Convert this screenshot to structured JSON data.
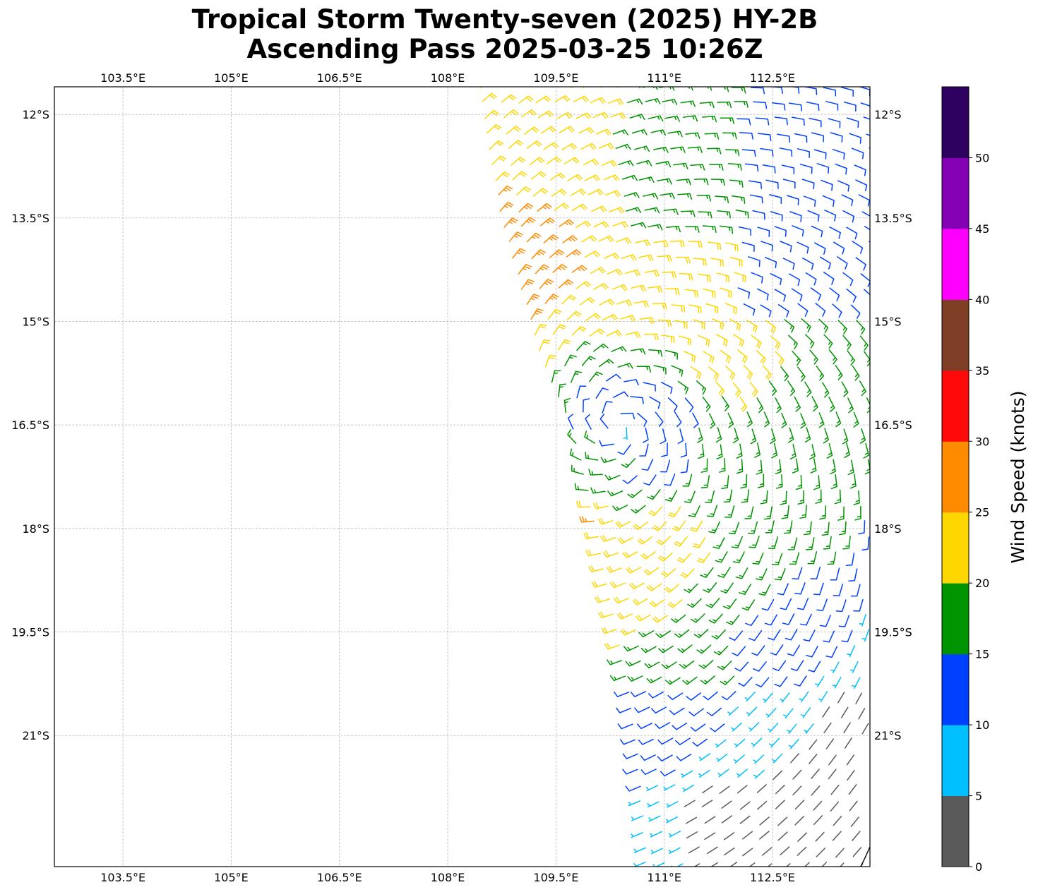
{
  "title": {
    "line1": "Tropical Storm Twenty-seven (2025) HY-2B",
    "line2": "Ascending Pass 2025-03-25 10:26Z"
  },
  "map": {
    "lon_range": [
      102.55,
      113.85
    ],
    "lat_range": [
      -22.9,
      -11.6
    ],
    "lon_ticks": [
      103.5,
      105,
      106.5,
      108,
      109.5,
      111,
      112.5
    ],
    "lon_tick_labels": [
      "103.5°E",
      "105°E",
      "106.5°E",
      "108°E",
      "109.5°E",
      "111°E",
      "112.5°E"
    ],
    "lat_ticks": [
      -12,
      -13.5,
      -15,
      -16.5,
      -18,
      -19.5,
      -21
    ],
    "lat_tick_labels": [
      "12°S",
      "13.5°S",
      "15°S",
      "16.5°S",
      "18°S",
      "19.5°S",
      "21°S"
    ],
    "gridlines": true,
    "grid_color": "#b0b0b0",
    "storm_center": {
      "lon": 110.35,
      "lat": -16.5
    },
    "swath_type": "scatterometer-wind-barbs"
  },
  "colorbar": {
    "label": "Wind Speed (knots)",
    "ticks": [
      "0",
      "5",
      "10",
      "15",
      "20",
      "25",
      "30",
      "35",
      "40",
      "45",
      "50"
    ],
    "bins": [
      {
        "min": 0,
        "max": 5,
        "color": "#5a5a5a"
      },
      {
        "min": 5,
        "max": 10,
        "color": "#00bfff"
      },
      {
        "min": 10,
        "max": 15,
        "color": "#0040ff"
      },
      {
        "min": 15,
        "max": 20,
        "color": "#009400"
      },
      {
        "min": 20,
        "max": 25,
        "color": "#ffd700"
      },
      {
        "min": 25,
        "max": 30,
        "color": "#ff8c00"
      },
      {
        "min": 30,
        "max": 35,
        "color": "#ff0a0a"
      },
      {
        "min": 35,
        "max": 40,
        "color": "#7f3f26"
      },
      {
        "min": 40,
        "max": 45,
        "color": "#ff00ff"
      },
      {
        "min": 45,
        "max": 50,
        "color": "#8400b4"
      },
      {
        "min": 50,
        "max": 55,
        "color": "#2e0060"
      }
    ]
  }
}
